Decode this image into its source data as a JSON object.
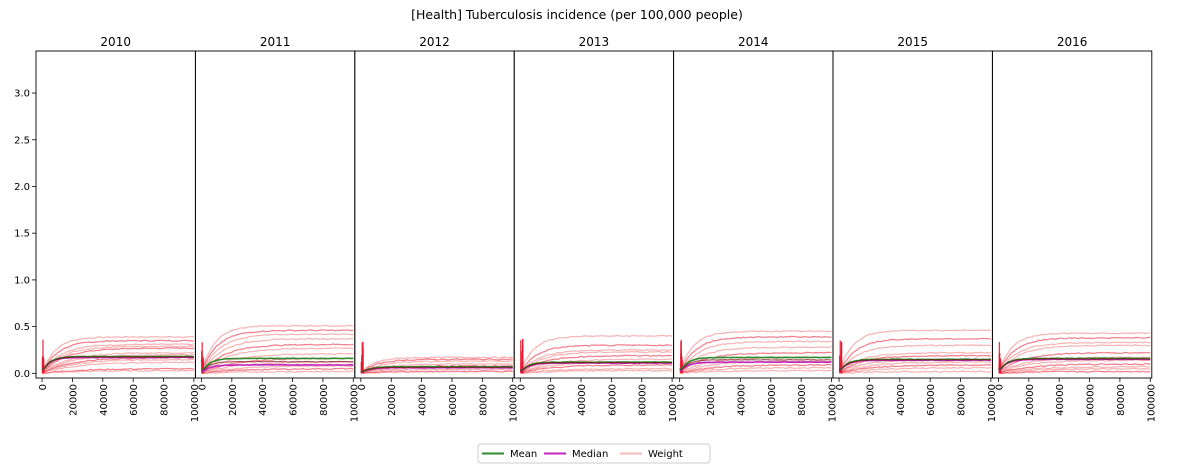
{
  "chart_data": {
    "type": "line",
    "title": "[Health] Tuberculosis incidence (per 100,000 people)",
    "ylim": [
      -0.05,
      3.45
    ],
    "yticks": [
      0.0,
      0.5,
      1.0,
      1.5,
      2.0,
      2.5,
      3.0
    ],
    "ytick_labels": [
      "0.0",
      "0.5",
      "1.0",
      "1.5",
      "2.0",
      "2.5",
      "3.0"
    ],
    "xlim": [
      -4000,
      101000
    ],
    "xticks": [
      0,
      20000,
      40000,
      60000,
      80000,
      100000
    ],
    "xtick_labels": [
      "0",
      "20000",
      "40000",
      "60000",
      "80000",
      "100000"
    ],
    "grid": false,
    "legend": {
      "position": "bottom-center",
      "entries": [
        {
          "label": "Mean",
          "color": "#2e8b2e"
        },
        {
          "label": "Median",
          "color": "#c026c0"
        },
        {
          "label": "Weight",
          "color": "#f4b8b8"
        }
      ]
    },
    "colors": {
      "mean": "#2e8b2e",
      "median": "#c026c0",
      "weight": "#f08080",
      "highlight": "#e8102a"
    },
    "panels": [
      {
        "label": "2010",
        "mean": 0.18,
        "median": 0.17,
        "weights": [
          0.39,
          0.35,
          0.31,
          0.29,
          0.27,
          0.22,
          0.2,
          0.17,
          0.15,
          0.12,
          0.05,
          0.03
        ]
      },
      {
        "label": "2011",
        "mean": 0.16,
        "median": 0.09,
        "weights": [
          0.51,
          0.46,
          0.42,
          0.37,
          0.31,
          0.27,
          0.21,
          0.16,
          0.12,
          0.08,
          0.05,
          0.02
        ]
      },
      {
        "label": "2012",
        "mean": 0.07,
        "median": 0.06,
        "weights": [
          0.17,
          0.15,
          0.13,
          0.1,
          0.08,
          0.06,
          0.04,
          0.02
        ]
      },
      {
        "label": "2013",
        "mean": 0.12,
        "median": 0.11,
        "weights": [
          0.4,
          0.3,
          0.25,
          0.23,
          0.19,
          0.15,
          0.12,
          0.09,
          0.05,
          0.03
        ]
      },
      {
        "label": "2014",
        "mean": 0.17,
        "median": 0.12,
        "weights": [
          0.45,
          0.39,
          0.34,
          0.28,
          0.22,
          0.17,
          0.13,
          0.09,
          0.06,
          0.03
        ]
      },
      {
        "label": "2015",
        "mean": 0.15,
        "median": 0.14,
        "weights": [
          0.46,
          0.37,
          0.3,
          0.22,
          0.19,
          0.15,
          0.12,
          0.09,
          0.06,
          0.02
        ]
      },
      {
        "label": "2016",
        "mean": 0.16,
        "median": 0.15,
        "weights": [
          0.43,
          0.38,
          0.33,
          0.3,
          0.22,
          0.17,
          0.14,
          0.1,
          0.07,
          0.05,
          0.02
        ]
      }
    ]
  }
}
